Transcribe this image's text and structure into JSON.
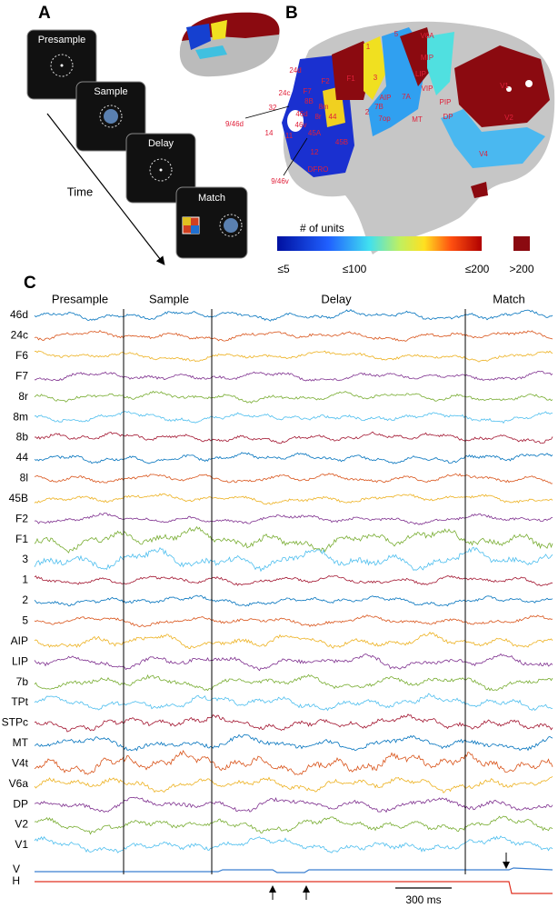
{
  "panel_a": {
    "label": "A",
    "epochs": [
      "Presample",
      "Sample",
      "Delay",
      "Match"
    ],
    "axis_label": "Time"
  },
  "panel_b": {
    "label": "B",
    "area_labels": [
      "24d",
      "24c",
      "F7",
      "F2",
      "F1",
      "3",
      "1",
      "5",
      "V6A",
      "MIP",
      "LIP",
      "VIP",
      "PIP",
      "7A",
      "DP",
      "AIP",
      "7B",
      "2",
      "7op",
      "MT",
      "V1",
      "V2",
      "V4",
      "9/46d",
      "9/46v",
      "8B",
      "8m",
      "46d",
      "8r",
      "44",
      "46v",
      "45A",
      "45B",
      "11",
      "14",
      "32",
      "12",
      "DFRO"
    ],
    "colorbar": {
      "title": "# of units",
      "tick_labels": [
        "≤5",
        "≤100",
        "≤200"
      ],
      "overflow_label": ">200"
    }
  },
  "panel_c": {
    "label": "C",
    "epochs": [
      "Presample",
      "Sample",
      "Delay",
      "Match"
    ],
    "channels": [
      "46d",
      "24c",
      "F6",
      "F7",
      "8r",
      "8m",
      "8b",
      "44",
      "8l",
      "45B",
      "F2",
      "F1",
      "3",
      "1",
      "2",
      "5",
      "AIP",
      "LIP",
      "7b",
      "TPt",
      "STPc",
      "MT",
      "V4t",
      "V6a",
      "DP",
      "V2",
      "V1"
    ],
    "eye_channels": [
      "V",
      "H"
    ],
    "scale_bar": "300 ms"
  }
}
